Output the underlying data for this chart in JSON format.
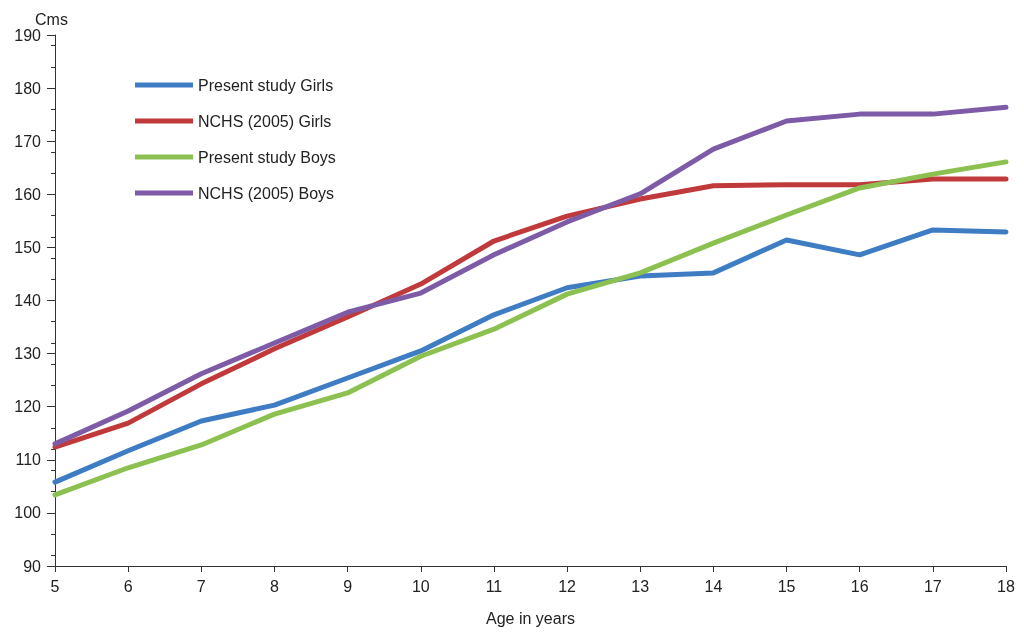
{
  "chart_data": {
    "type": "line",
    "ylabel": "Cms",
    "xlabel": "Age in years",
    "categories": [
      "5",
      "6",
      "7",
      "8",
      "9",
      "10",
      "11",
      "12",
      "13",
      "14",
      "15",
      "16",
      "17",
      "18"
    ],
    "series": [
      {
        "name": "Present study Girls",
        "color": "#3e7cc3",
        "values": [
          105.8,
          111.7,
          117.3,
          120.3,
          125.4,
          130.5,
          137.3,
          142.4,
          144.6,
          145.2,
          151.4,
          148.6,
          153.3,
          152.9
        ]
      },
      {
        "name": "NCHS (2005) Girls",
        "color": "#c0393b",
        "values": [
          112.4,
          116.9,
          124.3,
          130.9,
          136.9,
          143.1,
          151.2,
          155.9,
          159.1,
          161.6,
          161.8,
          161.8,
          162.9,
          162.9
        ]
      },
      {
        "name": "Present study Boys",
        "color": "#8cc152",
        "values": [
          103.4,
          108.5,
          112.8,
          118.6,
          122.6,
          129.5,
          134.6,
          141.2,
          145.2,
          150.8,
          156.1,
          161.2,
          163.8,
          166.1
        ]
      },
      {
        "name": "NCHS (2005) Boys",
        "color": "#7d5ba6",
        "values": [
          113,
          119.2,
          126.2,
          132,
          137.8,
          141.4,
          148.6,
          154.8,
          160.1,
          168.5,
          173.8,
          175.1,
          175.1,
          176.4
        ]
      }
    ],
    "ylim": [
      90,
      190
    ],
    "yticks": [
      90,
      100,
      110,
      120,
      130,
      140,
      150,
      160,
      170,
      180,
      190
    ],
    "grid": false,
    "legend": "top left",
    "marker": "none",
    "line_style": "solid"
  }
}
